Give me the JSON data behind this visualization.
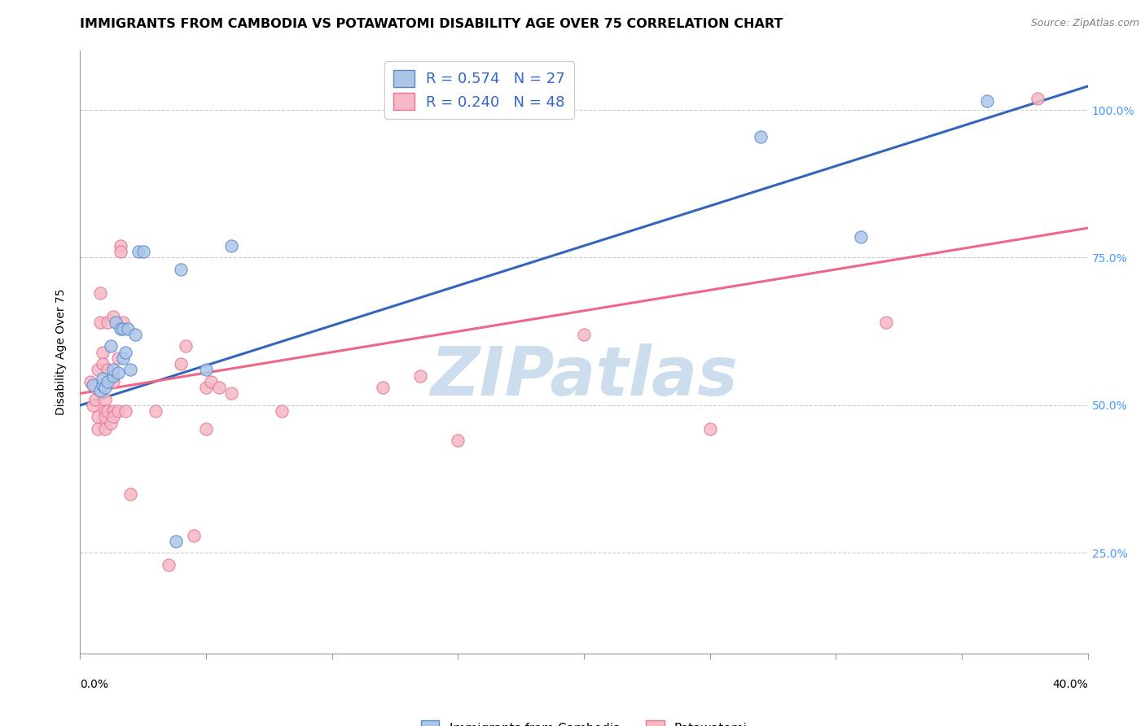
{
  "title": "IMMIGRANTS FROM CAMBODIA VS POTAWATOMI DISABILITY AGE OVER 75 CORRELATION CHART",
  "source": "Source: ZipAtlas.com",
  "ylabel": "Disability Age Over 75",
  "watermark": "ZIPatlas",
  "legend_blue_r": "0.574",
  "legend_blue_n": "27",
  "legend_pink_r": "0.240",
  "legend_pink_n": "48",
  "blue_scatter": [
    [
      0.005,
      0.535
    ],
    [
      0.008,
      0.525
    ],
    [
      0.009,
      0.535
    ],
    [
      0.009,
      0.545
    ],
    [
      0.01,
      0.53
    ],
    [
      0.011,
      0.54
    ],
    [
      0.012,
      0.6
    ],
    [
      0.013,
      0.55
    ],
    [
      0.013,
      0.56
    ],
    [
      0.014,
      0.64
    ],
    [
      0.015,
      0.555
    ],
    [
      0.016,
      0.63
    ],
    [
      0.017,
      0.63
    ],
    [
      0.017,
      0.58
    ],
    [
      0.018,
      0.59
    ],
    [
      0.019,
      0.63
    ],
    [
      0.02,
      0.56
    ],
    [
      0.022,
      0.62
    ],
    [
      0.023,
      0.76
    ],
    [
      0.025,
      0.76
    ],
    [
      0.038,
      0.27
    ],
    [
      0.04,
      0.73
    ],
    [
      0.05,
      0.56
    ],
    [
      0.06,
      0.77
    ],
    [
      0.27,
      0.955
    ],
    [
      0.31,
      0.785
    ],
    [
      0.36,
      1.015
    ]
  ],
  "pink_scatter": [
    [
      0.004,
      0.54
    ],
    [
      0.005,
      0.5
    ],
    [
      0.006,
      0.53
    ],
    [
      0.006,
      0.51
    ],
    [
      0.007,
      0.56
    ],
    [
      0.007,
      0.48
    ],
    [
      0.007,
      0.46
    ],
    [
      0.008,
      0.69
    ],
    [
      0.008,
      0.64
    ],
    [
      0.009,
      0.59
    ],
    [
      0.009,
      0.57
    ],
    [
      0.01,
      0.51
    ],
    [
      0.01,
      0.49
    ],
    [
      0.01,
      0.48
    ],
    [
      0.01,
      0.46
    ],
    [
      0.011,
      0.64
    ],
    [
      0.011,
      0.56
    ],
    [
      0.011,
      0.49
    ],
    [
      0.012,
      0.47
    ],
    [
      0.013,
      0.65
    ],
    [
      0.013,
      0.54
    ],
    [
      0.013,
      0.49
    ],
    [
      0.013,
      0.48
    ],
    [
      0.015,
      0.58
    ],
    [
      0.015,
      0.49
    ],
    [
      0.016,
      0.77
    ],
    [
      0.016,
      0.76
    ],
    [
      0.017,
      0.64
    ],
    [
      0.018,
      0.49
    ],
    [
      0.02,
      0.35
    ],
    [
      0.03,
      0.49
    ],
    [
      0.035,
      0.23
    ],
    [
      0.04,
      0.57
    ],
    [
      0.042,
      0.6
    ],
    [
      0.045,
      0.28
    ],
    [
      0.05,
      0.53
    ],
    [
      0.05,
      0.46
    ],
    [
      0.052,
      0.54
    ],
    [
      0.055,
      0.53
    ],
    [
      0.06,
      0.52
    ],
    [
      0.08,
      0.49
    ],
    [
      0.12,
      0.53
    ],
    [
      0.135,
      0.55
    ],
    [
      0.15,
      0.44
    ],
    [
      0.2,
      0.62
    ],
    [
      0.25,
      0.46
    ],
    [
      0.32,
      0.64
    ],
    [
      0.38,
      1.02
    ]
  ],
  "blue_line_x": [
    0.0,
    0.4
  ],
  "blue_line_y": [
    0.5,
    1.04
  ],
  "pink_line_x": [
    0.0,
    0.4
  ],
  "pink_line_y": [
    0.52,
    0.8
  ],
  "blue_color": "#adc6e8",
  "pink_color": "#f5b8c4",
  "blue_edge_color": "#5588cc",
  "pink_edge_color": "#e87090",
  "blue_line_color": "#3366bb",
  "pink_line_color": "#ee6688",
  "bg_color": "#ffffff",
  "grid_color": "#cccccc",
  "title_fontsize": 11.5,
  "axis_fontsize": 10,
  "legend_fontsize": 13,
  "watermark_color": "#ccdded",
  "watermark_fontsize": 60,
  "xlim": [
    0.0,
    0.4
  ],
  "ylim": [
    0.08,
    1.1
  ],
  "yticks": [
    0.25,
    0.5,
    0.75,
    1.0
  ],
  "ytick_labels": [
    "25.0%",
    "50.0%",
    "75.0%",
    "100.0%"
  ],
  "xticks": [
    0.0,
    0.05,
    0.1,
    0.15,
    0.2,
    0.25,
    0.3,
    0.35,
    0.4
  ],
  "x_edge_labels": [
    "0.0%",
    "40.0%"
  ]
}
